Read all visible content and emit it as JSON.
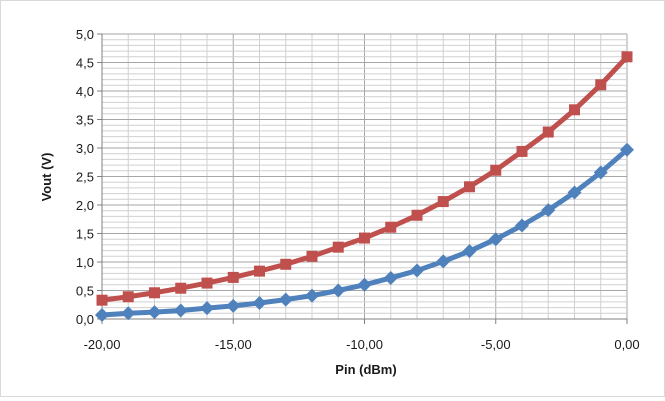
{
  "chart_data": {
    "type": "line",
    "title": "",
    "xlabel": "Pin (dBm)",
    "ylabel": "Vout (V)",
    "xlim": [
      -20,
      0
    ],
    "ylim": [
      0,
      5
    ],
    "x_ticks": [
      "-20,00",
      "-15,00",
      "-10,00",
      "-5,00",
      "0,00"
    ],
    "y_ticks": [
      "0,0",
      "0,5",
      "1,0",
      "1,5",
      "2,0",
      "2,5",
      "3,0",
      "3,5",
      "4,0",
      "4,5",
      "5,0"
    ],
    "grid": true,
    "legend": "none",
    "x": [
      -20,
      -19,
      -18,
      -17,
      -16,
      -15,
      -14,
      -13,
      -12,
      -11,
      -10,
      -9,
      -8,
      -7,
      -6,
      -5,
      -4,
      -3,
      -2,
      -1,
      0
    ],
    "series": [
      {
        "color": "#c0504d",
        "marker": "square",
        "values": [
          0.33,
          0.39,
          0.46,
          0.54,
          0.63,
          0.73,
          0.84,
          0.96,
          1.1,
          1.26,
          1.42,
          1.61,
          1.82,
          2.06,
          2.32,
          2.61,
          2.94,
          3.28,
          3.67,
          4.11,
          4.6
        ]
      },
      {
        "color": "#4f81bd",
        "marker": "diamond",
        "values": [
          0.07,
          0.1,
          0.12,
          0.15,
          0.19,
          0.23,
          0.28,
          0.34,
          0.41,
          0.5,
          0.6,
          0.72,
          0.85,
          1.01,
          1.19,
          1.4,
          1.64,
          1.91,
          2.22,
          2.57,
          2.97
        ]
      }
    ]
  }
}
